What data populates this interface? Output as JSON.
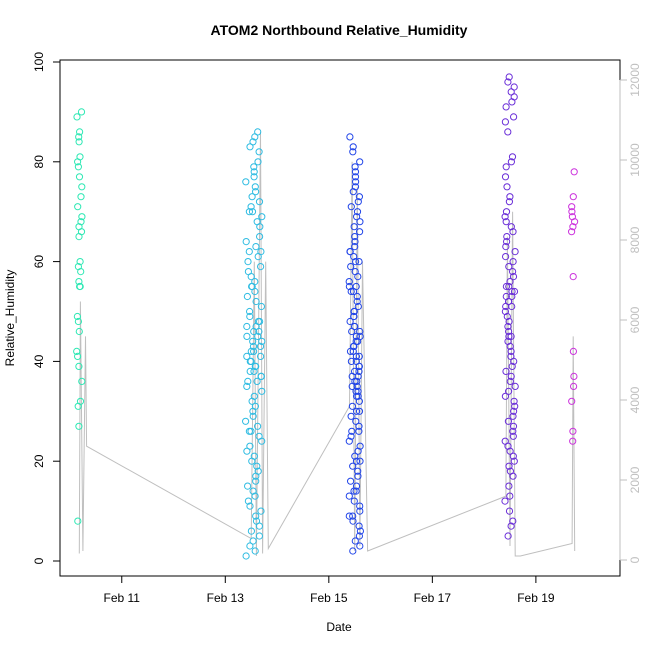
{
  "chart_data": {
    "type": "scatter",
    "title": "ATOM2 Northbound Relative_Humidity",
    "xlabel": "Date",
    "ylabel": "Relative_Humidity",
    "x_unit": "days (Feb)",
    "xlim": [
      10.0,
      20.2
    ],
    "ylim": [
      0,
      100
    ],
    "x_ticks": [
      {
        "value": 11,
        "label": "Feb 11"
      },
      {
        "value": 13,
        "label": "Feb 13"
      },
      {
        "value": 15,
        "label": "Feb 15"
      },
      {
        "value": 17,
        "label": "Feb 17"
      },
      {
        "value": 19,
        "label": "Feb 19"
      }
    ],
    "y_ticks": [
      0,
      20,
      40,
      60,
      80,
      100
    ],
    "y2_ticks": [
      0,
      2000,
      4000,
      6000,
      8000,
      10000,
      12000
    ],
    "y2lim": [
      0,
      12500
    ],
    "grid": false,
    "legend": "none",
    "point_style": "open-circle",
    "line_color": "#bfbfbf",
    "clusters": [
      {
        "center": 10.18,
        "spread": 0.1,
        "color": "#2ee8b4",
        "values": [
          90,
          89,
          86,
          85,
          84,
          81,
          80,
          79,
          77,
          75,
          73,
          71,
          69,
          68,
          67,
          66,
          65,
          60,
          59,
          58,
          55,
          55,
          56,
          49,
          48,
          46,
          42,
          41,
          39,
          36,
          32,
          31,
          27,
          8
        ]
      },
      {
        "center": 13.55,
        "spread": 0.32,
        "color": "#2fbce2",
        "values": [
          86,
          85,
          84,
          83,
          82,
          80,
          79,
          78,
          77,
          76,
          75,
          74,
          73,
          72,
          71,
          70,
          70,
          69,
          68,
          67,
          65,
          64,
          63,
          62,
          62,
          61,
          60,
          59,
          58,
          57,
          56,
          55,
          55,
          54,
          53,
          52,
          51,
          50,
          49,
          48,
          48,
          47,
          47,
          46,
          46,
          45,
          45,
          44,
          44,
          43,
          43,
          42,
          42,
          41,
          41,
          40,
          40,
          39,
          39,
          38,
          38,
          37,
          37,
          36,
          36,
          35,
          34,
          33,
          32,
          31,
          30,
          29,
          28,
          27,
          26,
          26,
          25,
          24,
          23,
          22,
          21,
          20,
          19,
          18,
          17,
          16,
          15,
          14,
          13,
          12,
          11,
          10,
          9,
          8,
          7,
          6,
          5,
          4,
          3,
          2,
          1
        ]
      },
      {
        "center": 15.5,
        "spread": 0.22,
        "color": "#2145e8",
        "values": [
          85,
          83,
          82,
          80,
          79,
          78,
          77,
          76,
          75,
          74,
          73,
          72,
          71,
          70,
          69,
          68,
          67,
          66,
          65,
          64,
          63,
          62,
          62,
          61,
          60,
          60,
          59,
          58,
          57,
          56,
          55,
          55,
          54,
          54,
          53,
          52,
          51,
          50,
          50,
          49,
          49,
          48,
          47,
          47,
          46,
          46,
          45,
          45,
          44,
          44,
          43,
          43,
          42,
          42,
          41,
          41,
          40,
          40,
          39,
          39,
          38,
          38,
          37,
          37,
          36,
          36,
          35,
          35,
          34,
          34,
          33,
          33,
          32,
          31,
          30,
          30,
          29,
          28,
          27,
          26,
          26,
          25,
          24,
          23,
          22,
          21,
          20,
          20,
          19,
          18,
          17,
          16,
          15,
          14,
          14,
          13,
          12,
          11,
          10,
          9,
          9,
          8,
          7,
          6,
          5,
          4,
          3,
          2
        ]
      },
      {
        "center": 18.5,
        "spread": 0.2,
        "color": "#6a2ed8",
        "values": [
          97,
          96,
          95,
          94,
          93,
          92,
          91,
          89,
          88,
          86,
          81,
          80,
          79,
          77,
          75,
          73,
          72,
          70,
          69,
          68,
          67,
          66,
          65,
          64,
          63,
          62,
          61,
          60,
          59,
          58,
          57,
          56,
          55,
          55,
          54,
          54,
          53,
          53,
          52,
          52,
          51,
          51,
          50,
          49,
          48,
          47,
          46,
          45,
          45,
          44,
          43,
          42,
          41,
          40,
          39,
          38,
          37,
          36,
          35,
          34,
          33,
          32,
          31,
          30,
          29,
          28,
          27,
          26,
          25,
          24,
          23,
          22,
          21,
          20,
          19,
          18,
          17,
          15,
          13,
          12,
          10,
          8,
          7,
          5
        ]
      },
      {
        "center": 19.72,
        "spread": 0.06,
        "color": "#cc33dd",
        "values": [
          78,
          73,
          71,
          70,
          69,
          68,
          67,
          66,
          57,
          42,
          37,
          35,
          32,
          26,
          24
        ]
      }
    ],
    "line_path": [
      [
        10.18,
        1.5
      ],
      [
        10.2,
        52
      ],
      [
        10.25,
        2
      ],
      [
        10.3,
        45
      ],
      [
        10.32,
        23
      ],
      [
        13.5,
        4.5
      ],
      [
        13.56,
        60
      ],
      [
        13.6,
        1
      ],
      [
        13.68,
        86
      ],
      [
        13.72,
        1.5
      ],
      [
        13.78,
        60
      ],
      [
        13.83,
        2.5
      ],
      [
        15.4,
        31
      ],
      [
        15.45,
        80
      ],
      [
        15.5,
        2
      ],
      [
        15.55,
        75
      ],
      [
        15.6,
        3
      ],
      [
        15.65,
        60
      ],
      [
        15.75,
        2
      ],
      [
        18.42,
        13
      ],
      [
        18.45,
        65
      ],
      [
        18.5,
        3
      ],
      [
        18.55,
        70
      ],
      [
        18.6,
        1
      ],
      [
        18.7,
        1
      ],
      [
        19.7,
        3.5
      ],
      [
        19.72,
        45
      ],
      [
        19.75,
        2
      ]
    ]
  }
}
